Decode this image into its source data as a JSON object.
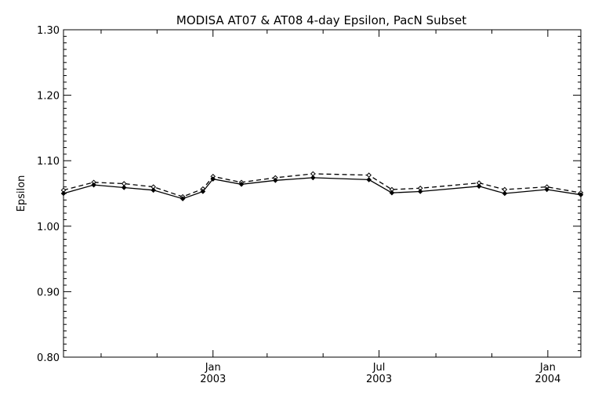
{
  "chart_data": {
    "type": "line",
    "title": "MODISA AT07 & AT08 4-day Epsilon, PacN Subset",
    "ylabel": "Epsilon",
    "xlabel": "",
    "ylim": [
      0.8,
      1.3
    ],
    "xlim": [
      "2002-07-22",
      "2004-02-06"
    ],
    "y_ticks": [
      "0.80",
      "0.90",
      "1.00",
      "1.10",
      "1.20",
      "1.30"
    ],
    "x_major_ticks": [
      {
        "date": "2003-01-01",
        "label_line1": "Jan",
        "label_line2": "2003"
      },
      {
        "date": "2003-07-01",
        "label_line1": "Jul",
        "label_line2": "2003"
      },
      {
        "date": "2004-01-01",
        "label_line1": "Jan",
        "label_line2": "2004"
      }
    ],
    "x_minor_ticks": [
      "2002-09-01",
      "2002-11-01",
      "2003-03-01",
      "2003-05-01",
      "2003-09-01",
      "2003-11-01"
    ],
    "grid": false,
    "legend": "none",
    "series": [
      {
        "style": "dashed",
        "color": "#000000",
        "x": [
          "2002-07-22",
          "2002-08-24",
          "2002-09-26",
          "2002-10-28",
          "2002-11-29",
          "2002-12-21",
          "2003-01-01",
          "2003-02-01",
          "2003-03-10",
          "2003-04-20",
          "2003-06-20",
          "2003-07-15",
          "2003-08-15",
          "2003-10-18",
          "2003-11-15",
          "2003-12-31",
          "2004-02-06"
        ],
        "values": [
          1.055,
          1.067,
          1.065,
          1.06,
          1.045,
          1.057,
          1.076,
          1.067,
          1.074,
          1.08,
          1.078,
          1.056,
          1.058,
          1.066,
          1.056,
          1.06,
          1.051
        ]
      },
      {
        "style": "solid",
        "color": "#000000",
        "x": [
          "2002-07-22",
          "2002-08-24",
          "2002-09-26",
          "2002-10-28",
          "2002-11-29",
          "2002-12-21",
          "2003-01-01",
          "2003-02-01",
          "2003-03-10",
          "2003-04-20",
          "2003-06-20",
          "2003-07-15",
          "2003-08-15",
          "2003-10-18",
          "2003-11-15",
          "2003-12-31",
          "2004-02-06"
        ],
        "values": [
          1.05,
          1.063,
          1.059,
          1.055,
          1.042,
          1.053,
          1.072,
          1.064,
          1.07,
          1.074,
          1.071,
          1.051,
          1.053,
          1.061,
          1.05,
          1.056,
          1.048
        ]
      }
    ]
  }
}
